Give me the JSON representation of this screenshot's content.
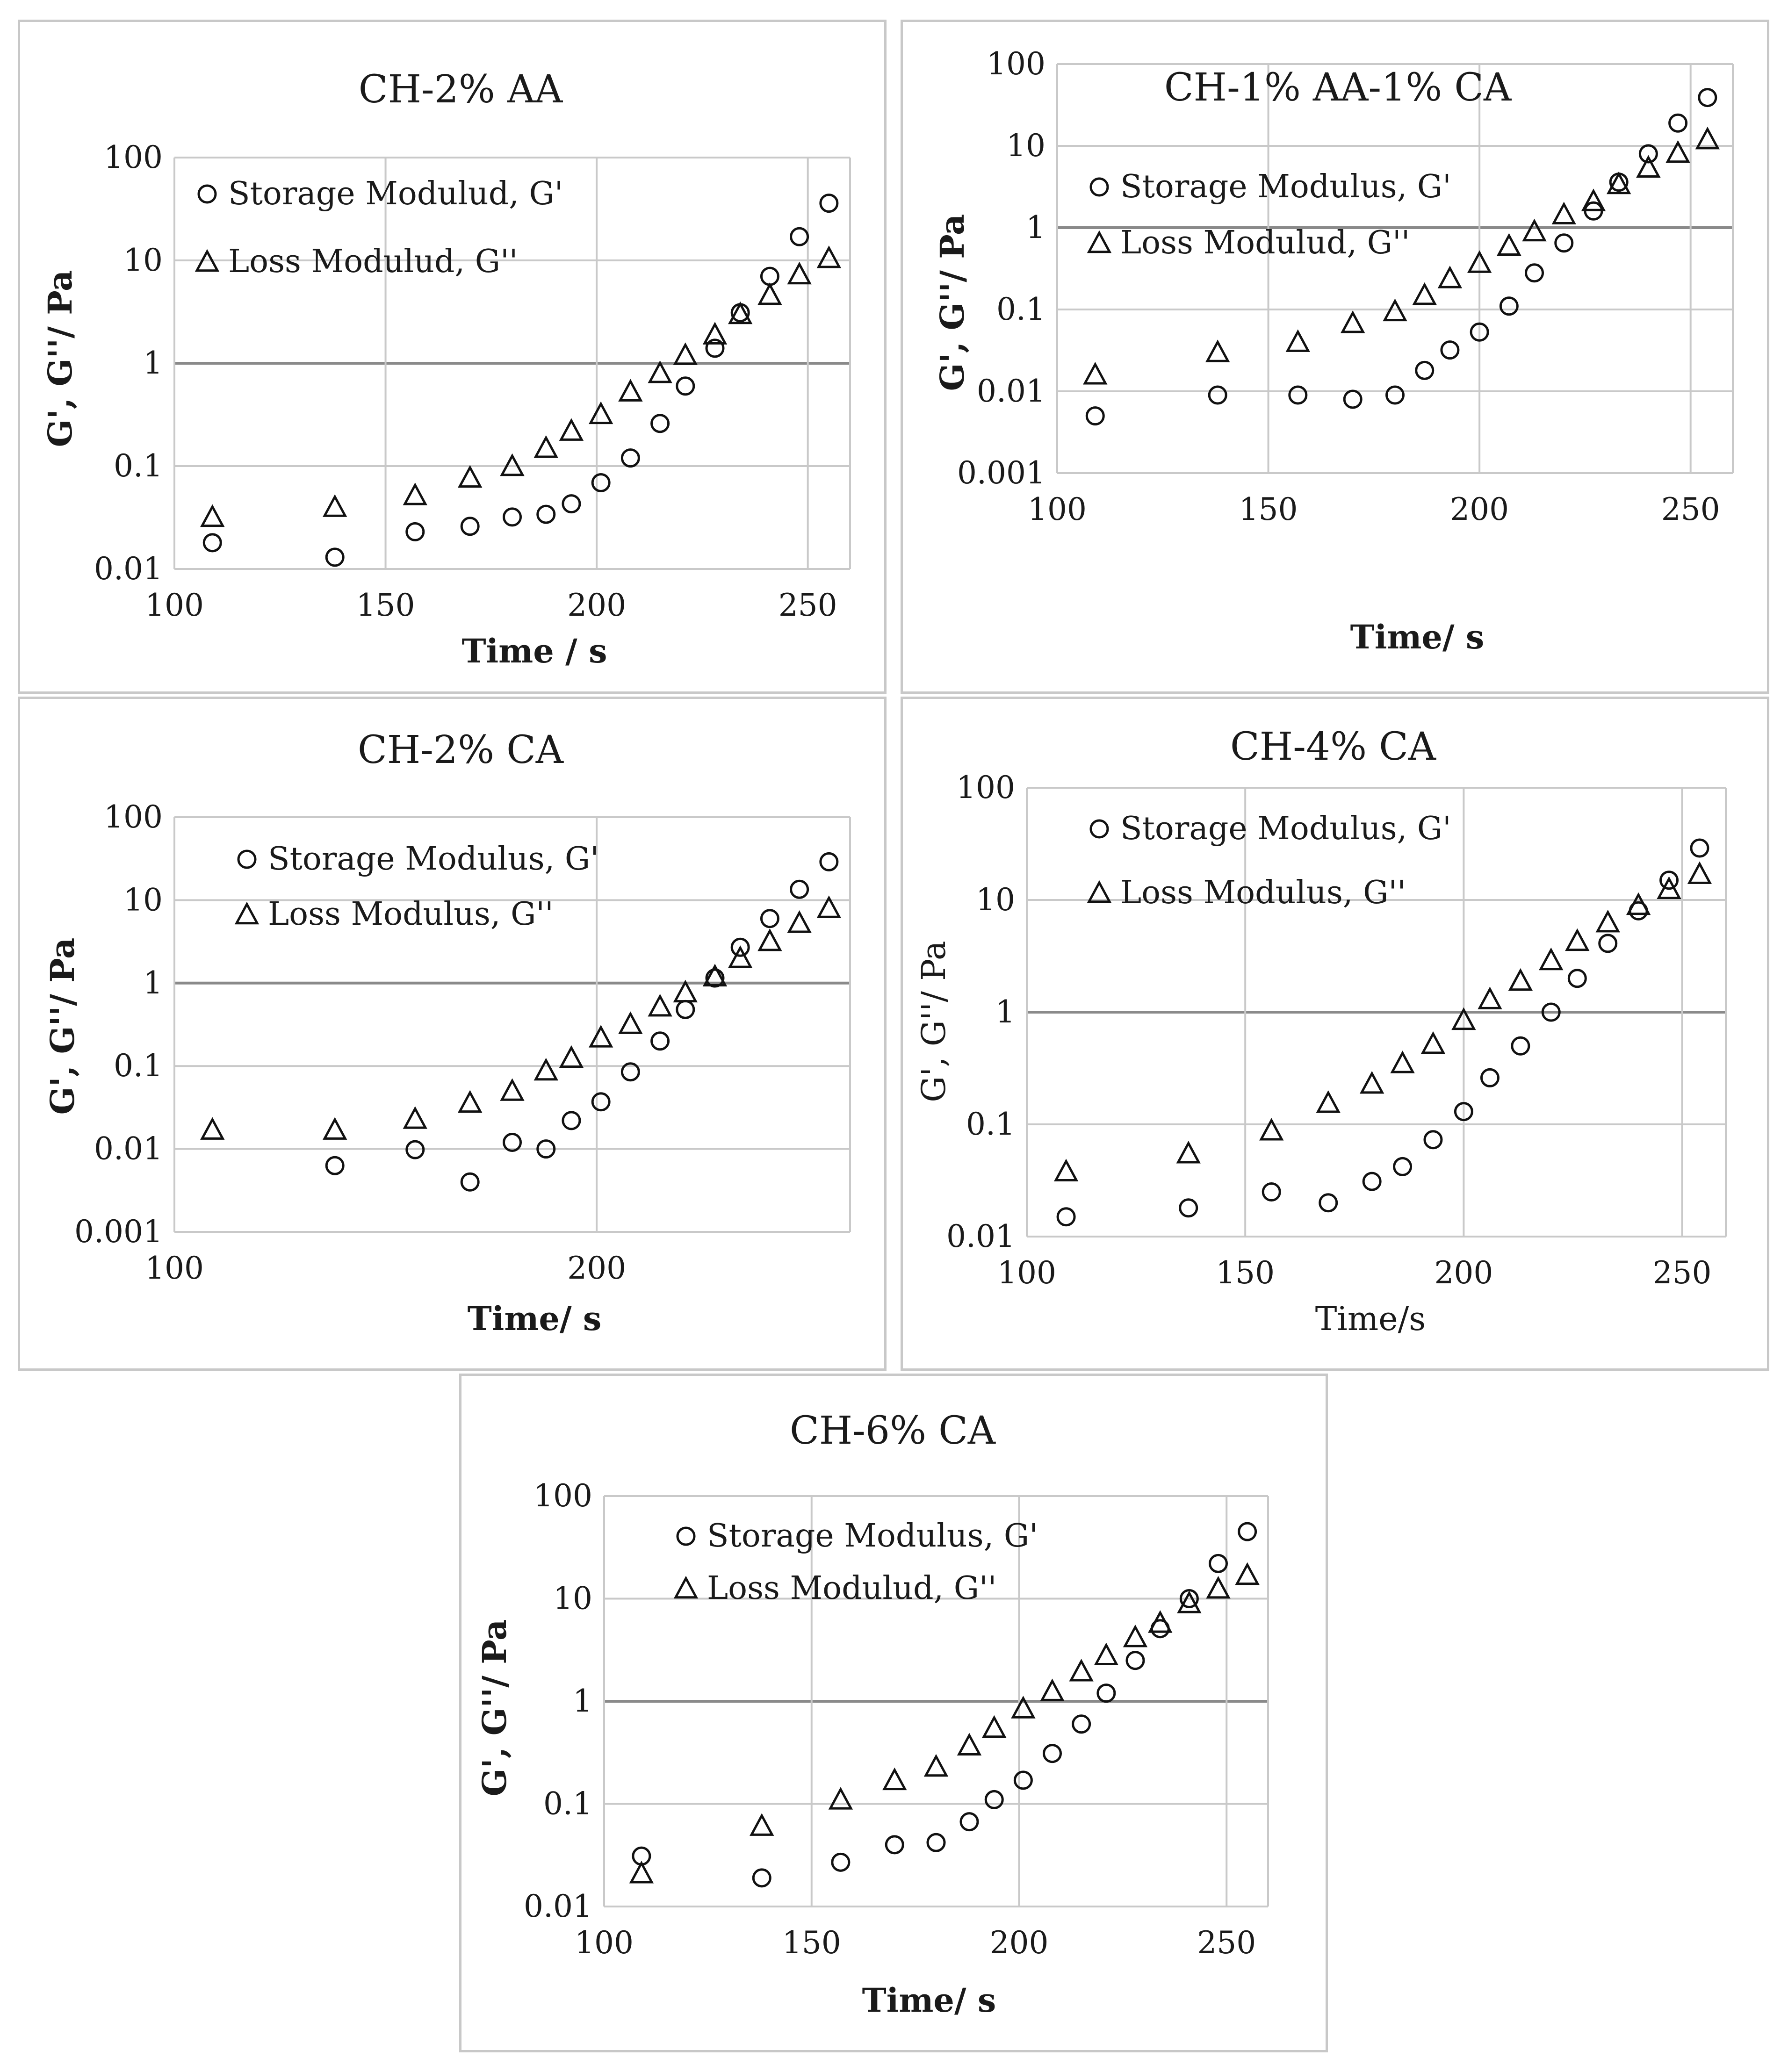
{
  "chart_data": [
    {
      "type": "scatter",
      "title": "CH-2% AA",
      "xlabel": "Time / s",
      "ylabel": "G', G''/ Pa",
      "xlim": [
        100,
        260
      ],
      "ylim": [
        0.01,
        100
      ],
      "yscale": "log",
      "x_ticks": [
        "100",
        "150",
        "200",
        "250"
      ],
      "y_ticks": [
        "0.01",
        "0.1",
        "1",
        "10",
        "100"
      ],
      "legend": [
        "Storage Modulud, G'",
        "Loss Modulud, G''"
      ],
      "series": [
        {
          "name": "Storage Modulud, G'",
          "marker": "circle",
          "x": [
            109,
            138,
            157,
            170,
            180,
            188,
            194,
            201,
            208,
            215,
            221,
            228,
            234,
            241,
            248,
            255
          ],
          "y": [
            0.018,
            0.013,
            0.023,
            0.026,
            0.032,
            0.034,
            0.043,
            0.069,
            0.12,
            0.26,
            0.6,
            1.4,
            3.1,
            7,
            17,
            36
          ]
        },
        {
          "name": "Loss Modulud, G''",
          "marker": "triangle",
          "x": [
            109,
            138,
            157,
            170,
            180,
            188,
            194,
            201,
            208,
            215,
            221,
            228,
            234,
            241,
            248,
            255
          ],
          "y": [
            0.032,
            0.04,
            0.052,
            0.077,
            0.1,
            0.15,
            0.22,
            0.32,
            0.53,
            0.8,
            1.2,
            1.9,
            3,
            4.6,
            7.3,
            10.5
          ]
        }
      ]
    },
    {
      "type": "scatter",
      "title": "CH-1% AA-1% CA",
      "xlabel": "Time/ s",
      "ylabel": "G', G''/ Pa",
      "xlim": [
        100,
        260
      ],
      "ylim": [
        0.001,
        100
      ],
      "yscale": "log",
      "x_ticks": [
        "100",
        "150",
        "200",
        "250"
      ],
      "y_ticks": [
        "0.001",
        "0.01",
        "0.1",
        "1",
        "10",
        "100"
      ],
      "legend": [
        "Storage Modulus, G'",
        "Loss Modulud, G''"
      ],
      "series": [
        {
          "name": "Storage Modulus, G'",
          "marker": "circle",
          "x": [
            109,
            138,
            157,
            170,
            180,
            187,
            193,
            200,
            207,
            213,
            220,
            227,
            233,
            240,
            247,
            254
          ],
          "y": [
            0.005,
            0.009,
            0.009,
            0.008,
            0.009,
            0.018,
            0.032,
            0.053,
            0.11,
            0.28,
            0.65,
            1.6,
            3.6,
            8,
            19,
            39
          ]
        },
        {
          "name": "Loss Modulud, G''",
          "marker": "triangle",
          "x": [
            109,
            138,
            157,
            170,
            180,
            187,
            193,
            200,
            207,
            213,
            220,
            227,
            233,
            240,
            247,
            254
          ],
          "y": [
            0.016,
            0.03,
            0.04,
            0.068,
            0.095,
            0.15,
            0.24,
            0.37,
            0.6,
            0.9,
            1.45,
            2.1,
            3.4,
            5.4,
            8.2,
            12
          ]
        }
      ]
    },
    {
      "type": "scatter",
      "title": "CH-2% CA",
      "xlabel": "Time/ s",
      "ylabel": "G', G''/ Pa",
      "xlim": [
        100,
        260
      ],
      "ylim": [
        0.001,
        100
      ],
      "yscale": "log",
      "x_ticks": [
        "100",
        "200"
      ],
      "y_ticks": [
        "0.001",
        "0.01",
        "0.1",
        "1",
        "10",
        "100"
      ],
      "legend": [
        "Storage Modulus, G'",
        "Loss Modulus, G''"
      ],
      "series": [
        {
          "name": "Storage Modulus, G'",
          "marker": "circle",
          "x": [
            138,
            157,
            170,
            180,
            188,
            194,
            201,
            208,
            215,
            221,
            228,
            234,
            241,
            248,
            255
          ],
          "y": [
            0.0063,
            0.0098,
            0.004,
            0.012,
            0.01,
            0.022,
            0.037,
            0.085,
            0.2,
            0.48,
            1.15,
            2.7,
            6,
            13.5,
            29
          ]
        },
        {
          "name": "Loss Modulus, G''",
          "marker": "triangle",
          "x": [
            109,
            138,
            157,
            170,
            180,
            188,
            194,
            201,
            208,
            215,
            221,
            228,
            234,
            241,
            248,
            255
          ],
          "y": [
            0.017,
            0.017,
            0.023,
            0.036,
            0.05,
            0.088,
            0.125,
            0.22,
            0.32,
            0.52,
            0.77,
            1.2,
            2,
            3.2,
            5.3,
            8
          ]
        }
      ]
    },
    {
      "type": "scatter",
      "title": "CH-4%  CA",
      "xlabel": "Time/s",
      "ylabel": "G', G''/ Pa",
      "xlim": [
        100,
        260
      ],
      "ylim": [
        0.01,
        100
      ],
      "yscale": "log",
      "x_ticks": [
        "100",
        "150",
        "200",
        "250"
      ],
      "y_ticks": [
        "0.01",
        "0.1",
        "1",
        "10",
        "100"
      ],
      "legend": [
        "Storage Modulus, G'",
        "Loss Modulus, G''"
      ],
      "series": [
        {
          "name": "Storage Modulus, G'",
          "marker": "circle",
          "x": [
            109,
            137,
            156,
            169,
            179,
            186,
            193,
            200,
            206,
            213,
            220,
            226,
            233,
            240,
            247,
            254
          ],
          "y": [
            0.015,
            0.018,
            0.025,
            0.02,
            0.031,
            0.042,
            0.073,
            0.13,
            0.26,
            0.5,
            1,
            2,
            4.1,
            8,
            15,
            29
          ]
        },
        {
          "name": "Loss Modulus, G''",
          "marker": "triangle",
          "x": [
            109,
            137,
            156,
            169,
            179,
            186,
            193,
            200,
            206,
            213,
            220,
            226,
            233,
            240,
            247,
            254
          ],
          "y": [
            0.038,
            0.055,
            0.088,
            0.155,
            0.23,
            0.35,
            0.52,
            0.85,
            1.3,
            1.9,
            2.9,
            4.3,
            6.3,
            9,
            12.5,
            17
          ]
        }
      ]
    },
    {
      "type": "scatter",
      "title": "CH-6% CA",
      "xlabel": "Time/ s",
      "ylabel": "G', G''/ Pa",
      "xlim": [
        100,
        260
      ],
      "ylim": [
        0.01,
        100
      ],
      "yscale": "log",
      "x_ticks": [
        "100",
        "150",
        "200",
        "250"
      ],
      "y_ticks": [
        "0.01",
        "0.1",
        "1",
        "10",
        "100"
      ],
      "legend": [
        "Storage Modulus, G'",
        "Loss Modulud, G''"
      ],
      "series": [
        {
          "name": "Storage Modulus, G'",
          "marker": "circle",
          "x": [
            109,
            138,
            157,
            170,
            180,
            188,
            194,
            201,
            208,
            215,
            221,
            228,
            234,
            241,
            248,
            255
          ],
          "y": [
            0.031,
            0.019,
            0.027,
            0.04,
            0.042,
            0.067,
            0.11,
            0.17,
            0.31,
            0.6,
            1.2,
            2.5,
            5.1,
            10,
            22,
            45
          ]
        },
        {
          "name": "Loss Modulud, G''",
          "marker": "triangle",
          "x": [
            109,
            138,
            157,
            170,
            180,
            188,
            194,
            201,
            208,
            215,
            221,
            228,
            234,
            241,
            248,
            255
          ],
          "y": [
            0.021,
            0.061,
            0.11,
            0.17,
            0.23,
            0.37,
            0.55,
            0.85,
            1.25,
            1.95,
            2.8,
            4.2,
            5.8,
            9,
            12.5,
            17
          ]
        }
      ]
    }
  ]
}
